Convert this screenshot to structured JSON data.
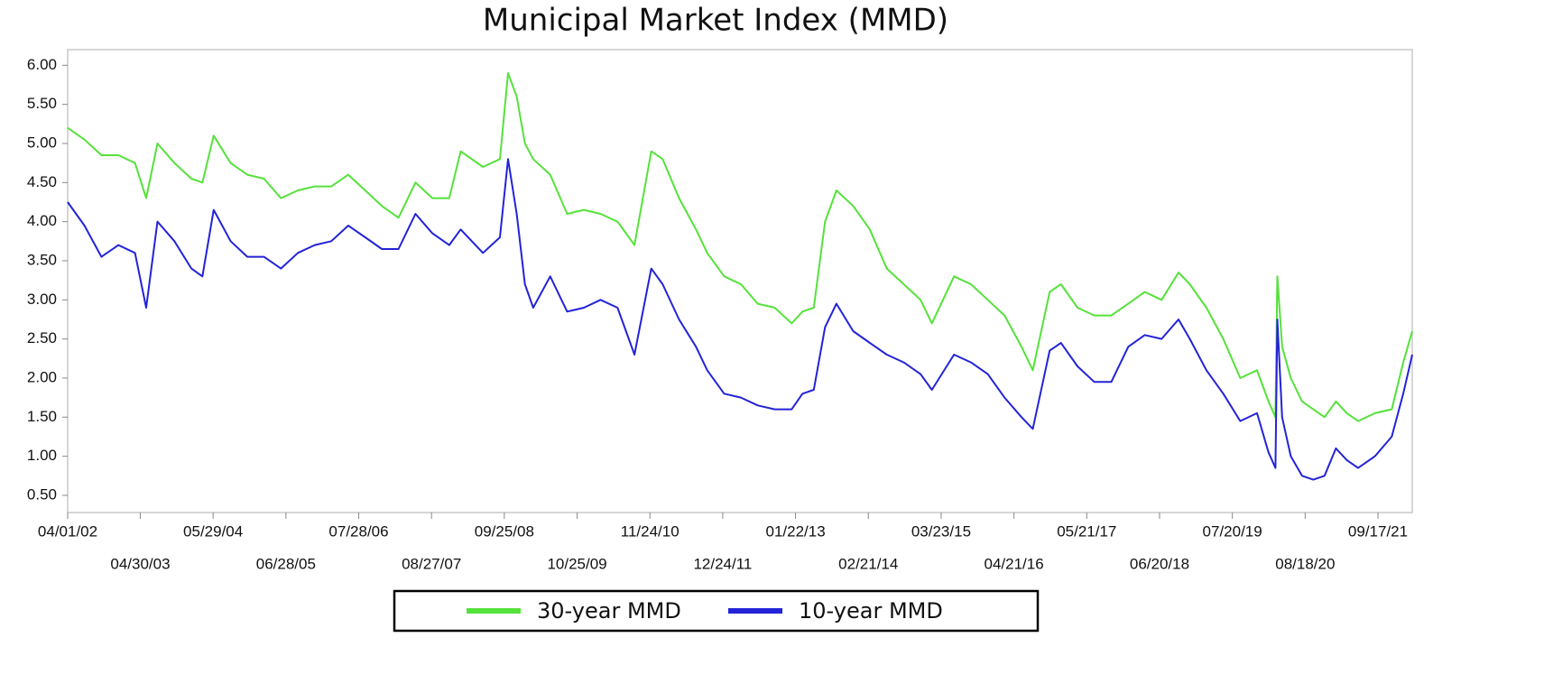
{
  "chart_data": {
    "type": "line",
    "title": "Municipal Market Index (MMD)",
    "x": [
      "2002-04-01",
      "2002-07-01",
      "2002-10-01",
      "2003-01-01",
      "2003-04-01",
      "2003-06-01",
      "2003-08-01",
      "2003-11-01",
      "2004-02-01",
      "2004-04-01",
      "2004-06-01",
      "2004-09-01",
      "2004-12-01",
      "2005-03-01",
      "2005-06-01",
      "2005-09-01",
      "2005-12-01",
      "2006-03-01",
      "2006-06-01",
      "2006-09-01",
      "2006-12-01",
      "2007-03-01",
      "2007-06-01",
      "2007-09-01",
      "2007-12-01",
      "2008-02-01",
      "2008-06-01",
      "2008-09-01",
      "2008-10-15",
      "2008-12-01",
      "2009-01-15",
      "2009-03-01",
      "2009-06-01",
      "2009-09-01",
      "2009-12-01",
      "2010-03-01",
      "2010-06-01",
      "2010-09-01",
      "2010-12-01",
      "2011-02-01",
      "2011-05-01",
      "2011-08-01",
      "2011-10-01",
      "2012-01-01",
      "2012-04-01",
      "2012-07-01",
      "2012-10-01",
      "2013-01-01",
      "2013-03-01",
      "2013-05-01",
      "2013-07-01",
      "2013-09-01",
      "2013-12-01",
      "2014-03-01",
      "2014-06-01",
      "2014-09-01",
      "2014-12-01",
      "2015-02-01",
      "2015-06-01",
      "2015-09-01",
      "2015-12-01",
      "2016-03-01",
      "2016-06-01",
      "2016-08-01",
      "2016-11-01",
      "2017-01-01",
      "2017-04-01",
      "2017-07-01",
      "2017-10-01",
      "2018-01-01",
      "2018-04-01",
      "2018-07-01",
      "2018-10-01",
      "2018-12-01",
      "2019-03-01",
      "2019-06-01",
      "2019-09-01",
      "2019-12-01",
      "2020-02-01",
      "2020-03-10",
      "2020-03-20",
      "2020-04-15",
      "2020-06-01",
      "2020-08-01",
      "2020-10-01",
      "2020-12-01",
      "2021-02-01",
      "2021-04-01",
      "2021-06-01",
      "2021-09-01",
      "2021-12-01",
      "2022-02-01",
      "2022-03-22"
    ],
    "series": [
      {
        "name": "30-year MMD",
        "color": "#55e23a",
        "values": [
          5.2,
          5.05,
          4.85,
          4.85,
          4.75,
          4.3,
          5.0,
          4.75,
          4.55,
          4.5,
          5.1,
          4.75,
          4.6,
          4.55,
          4.3,
          4.4,
          4.45,
          4.45,
          4.6,
          4.4,
          4.2,
          4.05,
          4.5,
          4.3,
          4.3,
          4.9,
          4.7,
          4.8,
          5.9,
          5.6,
          5.0,
          4.8,
          4.6,
          4.1,
          4.15,
          4.1,
          4.0,
          3.7,
          4.9,
          4.8,
          4.3,
          3.9,
          3.6,
          3.3,
          3.2,
          2.95,
          2.9,
          2.7,
          2.85,
          2.9,
          4.0,
          4.4,
          4.2,
          3.9,
          3.4,
          3.2,
          3.0,
          2.7,
          3.3,
          3.2,
          3.0,
          2.8,
          2.4,
          2.1,
          3.1,
          3.2,
          2.9,
          2.8,
          2.8,
          2.95,
          3.1,
          3.0,
          3.35,
          3.2,
          2.9,
          2.5,
          2.0,
          2.1,
          1.7,
          1.5,
          3.3,
          2.4,
          2.0,
          1.7,
          1.6,
          1.5,
          1.7,
          1.55,
          1.45,
          1.55,
          1.6,
          2.2,
          2.6
        ]
      },
      {
        "name": "10-year MMD",
        "color": "#2323d8",
        "values": [
          4.25,
          3.95,
          3.55,
          3.7,
          3.6,
          2.9,
          4.0,
          3.75,
          3.4,
          3.3,
          4.15,
          3.75,
          3.55,
          3.55,
          3.4,
          3.6,
          3.7,
          3.75,
          3.95,
          3.8,
          3.65,
          3.65,
          4.1,
          3.85,
          3.7,
          3.9,
          3.6,
          3.8,
          4.8,
          4.1,
          3.2,
          2.9,
          3.3,
          2.85,
          2.9,
          3.0,
          2.9,
          2.3,
          3.4,
          3.2,
          2.75,
          2.4,
          2.1,
          1.8,
          1.75,
          1.65,
          1.6,
          1.6,
          1.8,
          1.85,
          2.65,
          2.95,
          2.6,
          2.45,
          2.3,
          2.2,
          2.05,
          1.85,
          2.3,
          2.2,
          2.05,
          1.75,
          1.5,
          1.35,
          2.35,
          2.45,
          2.15,
          1.95,
          1.95,
          2.4,
          2.55,
          2.5,
          2.75,
          2.5,
          2.1,
          1.8,
          1.45,
          1.55,
          1.05,
          0.85,
          2.75,
          1.5,
          1.0,
          0.75,
          0.7,
          0.75,
          1.1,
          0.95,
          0.85,
          1.0,
          1.25,
          1.8,
          2.3
        ]
      }
    ],
    "xlim": [
      "2002-04-01",
      "2022-03-22"
    ],
    "xticks": [
      {
        "value": "2002-04-01",
        "label": "04/01/02"
      },
      {
        "value": "2003-04-30",
        "label": "04/30/03"
      },
      {
        "value": "2004-05-29",
        "label": "05/29/04"
      },
      {
        "value": "2005-06-28",
        "label": "06/28/05"
      },
      {
        "value": "2006-07-28",
        "label": "07/28/06"
      },
      {
        "value": "2007-08-27",
        "label": "08/27/07"
      },
      {
        "value": "2008-09-25",
        "label": "09/25/08"
      },
      {
        "value": "2009-10-25",
        "label": "10/25/09"
      },
      {
        "value": "2010-11-24",
        "label": "11/24/10"
      },
      {
        "value": "2011-12-24",
        "label": "12/24/11"
      },
      {
        "value": "2013-01-22",
        "label": "01/22/13"
      },
      {
        "value": "2014-02-21",
        "label": "02/21/14"
      },
      {
        "value": "2015-03-23",
        "label": "03/23/15"
      },
      {
        "value": "2016-04-21",
        "label": "04/21/16"
      },
      {
        "value": "2017-05-21",
        "label": "05/21/17"
      },
      {
        "value": "2018-06-20",
        "label": "06/20/18"
      },
      {
        "value": "2019-07-20",
        "label": "07/20/19"
      },
      {
        "value": "2020-08-18",
        "label": "08/18/20"
      },
      {
        "value": "2021-09-17",
        "label": "09/17/21"
      }
    ],
    "ylim": [
      0.28,
      6.2
    ],
    "yticks": [
      {
        "value": 0.5,
        "label": "0.50"
      },
      {
        "value": 1,
        "label": "1.00"
      },
      {
        "value": 1.5,
        "label": "1.50"
      },
      {
        "value": 2,
        "label": "2.00"
      },
      {
        "value": 2.5,
        "label": "2.50"
      },
      {
        "value": 3,
        "label": "3.00"
      },
      {
        "value": 3.5,
        "label": "3.50"
      },
      {
        "value": 4,
        "label": "4.00"
      },
      {
        "value": 4.5,
        "label": "4.50"
      },
      {
        "value": 5,
        "label": "5.00"
      },
      {
        "value": 5.5,
        "label": "5.50"
      },
      {
        "value": 6,
        "label": "6.00"
      }
    ],
    "grid": false,
    "legend": "bottom"
  }
}
